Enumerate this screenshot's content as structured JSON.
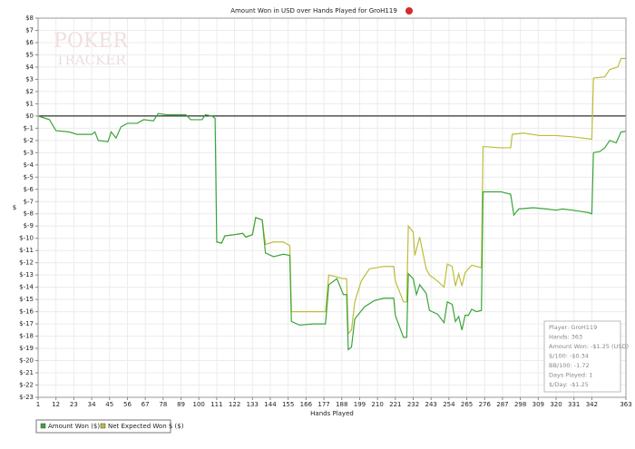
{
  "chart_data": {
    "type": "line",
    "title": "Amount Won in USD over Hands Played for GroH119",
    "x_label": "Hands Played",
    "y_label": "$",
    "watermark": [
      "POKER",
      "TRACKER"
    ],
    "xlim": [
      1,
      363
    ],
    "ylim": [
      -23,
      8
    ],
    "xticks": [
      1,
      12,
      23,
      34,
      45,
      56,
      67,
      78,
      89,
      100,
      111,
      122,
      133,
      144,
      155,
      166,
      177,
      188,
      199,
      210,
      221,
      232,
      243,
      254,
      265,
      276,
      287,
      298,
      309,
      320,
      331,
      342,
      363
    ],
    "yticks": [
      {
        "value": 8,
        "label": "$8"
      },
      {
        "value": 7,
        "label": "$7"
      },
      {
        "value": 6,
        "label": "$6"
      },
      {
        "value": 5,
        "label": "$5"
      },
      {
        "value": 4,
        "label": "$4"
      },
      {
        "value": 3,
        "label": "$3"
      },
      {
        "value": 2,
        "label": "$2"
      },
      {
        "value": 1,
        "label": "$1"
      },
      {
        "value": 0,
        "label": "$0"
      },
      {
        "value": -1,
        "label": "$-1"
      },
      {
        "value": -2,
        "label": "$-2"
      },
      {
        "value": -3,
        "label": "$-3"
      },
      {
        "value": -4,
        "label": "$-4"
      },
      {
        "value": -5,
        "label": "$-5"
      },
      {
        "value": -6,
        "label": "$-6"
      },
      {
        "value": -7,
        "label": "$-7"
      },
      {
        "value": -8,
        "label": "$-8"
      },
      {
        "value": -9,
        "label": "$-9"
      },
      {
        "value": -10,
        "label": "$-10"
      },
      {
        "value": -11,
        "label": "$-11"
      },
      {
        "value": -12,
        "label": "$-12"
      },
      {
        "value": -13,
        "label": "$-13"
      },
      {
        "value": -14,
        "label": "$-14"
      },
      {
        "value": -15,
        "label": "$-15"
      },
      {
        "value": -16,
        "label": "$-16"
      },
      {
        "value": -17,
        "label": "$-17"
      },
      {
        "value": -18,
        "label": "$-18"
      },
      {
        "value": -19,
        "label": "$-19"
      },
      {
        "value": -20,
        "label": "$-20"
      },
      {
        "value": -21,
        "label": "$-21"
      },
      {
        "value": -22,
        "label": "$-22"
      },
      {
        "value": -23,
        "label": "$-23"
      }
    ],
    "grid": true,
    "legend": "bottom-left",
    "series": [
      {
        "name": "Amount Won ($)",
        "color": "#3aa53a",
        "x": [
          1,
          8,
          12,
          20,
          25,
          34,
          36,
          38,
          44,
          46,
          49,
          52,
          56,
          62,
          66,
          72,
          75,
          80,
          86,
          92,
          95,
          102,
          104,
          108,
          110,
          111,
          114,
          116,
          122,
          127,
          129,
          133,
          135,
          139,
          141,
          146,
          152,
          156,
          157,
          162,
          170,
          178,
          180,
          185,
          189,
          191,
          192,
          194,
          196,
          202,
          208,
          214,
          220,
          221,
          226,
          228,
          229,
          232,
          234,
          236,
          240,
          242,
          247,
          251,
          253,
          256,
          258,
          260,
          262,
          264,
          266,
          268,
          271,
          274,
          275,
          286,
          292,
          294,
          297,
          306,
          314,
          320,
          324,
          330,
          340,
          342,
          343,
          347,
          350,
          353,
          357,
          360,
          363
        ],
        "values": [
          0,
          -0.3,
          -1.2,
          -1.3,
          -1.5,
          -1.5,
          -1.3,
          -2.0,
          -2.1,
          -1.3,
          -1.8,
          -0.9,
          -0.6,
          -0.6,
          -0.3,
          -0.4,
          0.2,
          0.1,
          0.1,
          0.1,
          -0.3,
          -0.3,
          0.1,
          0,
          -0.2,
          -10.3,
          -10.4,
          -9.8,
          -9.7,
          -9.6,
          -9.9,
          -9.7,
          -8.3,
          -8.5,
          -11.2,
          -11.5,
          -11.3,
          -11.4,
          -16.8,
          -17.1,
          -17.0,
          -17.0,
          -13.8,
          -13.3,
          -14.6,
          -14.6,
          -19.1,
          -18.9,
          -16.6,
          -15.6,
          -15.1,
          -14.9,
          -14.9,
          -16.3,
          -18.1,
          -18.1,
          -12.9,
          -13.3,
          -14.6,
          -13.8,
          -14.5,
          -15.9,
          -16.2,
          -16.9,
          -15.2,
          -15.4,
          -16.8,
          -16.4,
          -17.5,
          -16.3,
          -16.3,
          -15.8,
          -16.0,
          -15.9,
          -6.2,
          -6.2,
          -6.4,
          -8.1,
          -7.6,
          -7.5,
          -7.6,
          -7.7,
          -7.6,
          -7.7,
          -7.9,
          -8.0,
          -3.0,
          -2.9,
          -2.6,
          -2.0,
          -2.2,
          -1.3,
          -1.25
        ]
      },
      {
        "name": "Net Expected Won $ ($)",
        "color": "#bdbd3c",
        "x": [
          111,
          114,
          116,
          122,
          127,
          129,
          133,
          135,
          139,
          141,
          146,
          152,
          156,
          157,
          178,
          180,
          189,
          191,
          192,
          194,
          196,
          200,
          205,
          214,
          220,
          221,
          226,
          228,
          229,
          232,
          233,
          236,
          240,
          242,
          247,
          251,
          253,
          256,
          258,
          260,
          262,
          264,
          268,
          274,
          275,
          286,
          292,
          293,
          300,
          310,
          320,
          330,
          342,
          343,
          350,
          353,
          358,
          360,
          363
        ],
        "values": [
          -10.3,
          -10.4,
          -9.8,
          -9.7,
          -9.6,
          -9.9,
          -9.7,
          -8.3,
          -8.5,
          -10.5,
          -10.3,
          -10.3,
          -10.6,
          -16.0,
          -16.0,
          -13.0,
          -13.3,
          -13.3,
          -17.8,
          -17.5,
          -15.2,
          -13.5,
          -12.5,
          -12.3,
          -12.3,
          -13.5,
          -15.2,
          -15.2,
          -9.0,
          -9.5,
          -11.4,
          -9.9,
          -12.5,
          -13.0,
          -13.5,
          -14.0,
          -12.1,
          -12.3,
          -13.9,
          -12.9,
          -13.9,
          -12.8,
          -12.2,
          -12.4,
          -2.5,
          -2.6,
          -2.6,
          -1.5,
          -1.4,
          -1.6,
          -1.6,
          -1.7,
          -1.9,
          3.1,
          3.2,
          3.8,
          4.0,
          4.7,
          4.7
        ]
      }
    ],
    "info_box": [
      "Player: GroH119",
      "Hands: 363",
      "Amount Won: -$1.25 (USD)",
      "$/100: -$0.34",
      "BB/100: -1.72",
      "Days Played: 1",
      "$/Day: -$1.25"
    ]
  }
}
